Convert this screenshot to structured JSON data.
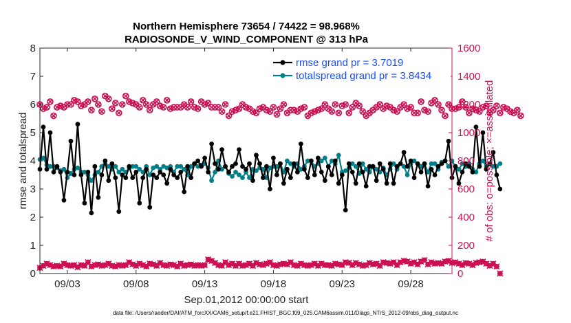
{
  "colors": {
    "rmse": "#000000",
    "spread": "#00808a",
    "obs": "#cc1054",
    "legend_text": "#1a4dff",
    "axis": "#262626"
  },
  "chart_data": {
    "type": "line",
    "title": "Northern Hemisphere 73654 / 74422 = 98.968%",
    "subtitle": "RADIOSONDE_V_WIND_COMPONENT @ 313 hPa",
    "xlabel": "Sep.01,2012 00:00:00 start",
    "ylabel": "rmse and totalspread",
    "ylabel_right": "# of obs: o=possible; ×=assimilated",
    "xlim": [
      1.0,
      31.0
    ],
    "ylim": [
      0,
      8
    ],
    "ylim_right": [
      0,
      1600
    ],
    "xticks": [
      3,
      8,
      13,
      18,
      23,
      28
    ],
    "xticklabels": [
      "09/03",
      "09/08",
      "09/13",
      "09/18",
      "09/23",
      "09/28"
    ],
    "yticks": [
      0,
      1,
      2,
      3,
      4,
      5,
      6,
      7,
      8
    ],
    "yticklabels": [
      "0",
      "1",
      "2",
      "3",
      "4",
      "5",
      "6",
      "7",
      "8"
    ],
    "yticks_right": [
      0,
      200,
      400,
      600,
      800,
      1000,
      1200,
      1400,
      1600
    ],
    "yticklabels_right": [
      "0",
      "200",
      "400",
      "600",
      "800",
      "1000",
      "1200",
      "1400",
      "1600"
    ],
    "x_start": 1.0,
    "x_step": 0.25,
    "series": [
      {
        "name": "rmse grand pr = 3.7019",
        "axis": "left",
        "marker": "dot",
        "values": [
          3.7,
          5.2,
          3.7,
          5.0,
          3.6,
          3.8,
          3.6,
          2.6,
          3.6,
          4.7,
          3.5,
          5.3,
          3.5,
          2.5,
          3.6,
          2.15,
          3.8,
          2.7,
          3.5,
          4.0,
          3.3,
          3.9,
          3.4,
          2.2,
          3.5,
          3.4,
          3.8,
          3.4,
          3.6,
          2.5,
          3.4,
          3.7,
          2.35,
          3.5,
          3.4,
          3.6,
          3.5,
          3.2,
          3.7,
          3.5,
          3.4,
          3.6,
          2.9,
          3.8,
          3.4,
          3.9,
          4.0,
          3.8,
          4.1,
          3.6,
          4.6,
          3.9,
          3.7,
          4.4,
          3.8,
          3.6,
          3.8,
          3.9,
          4.4,
          3.8,
          3.7,
          3.9,
          3.3,
          4.2,
          3.9,
          3.4,
          3.8,
          3.0,
          4.1,
          3.5,
          3.9,
          3.2,
          3.7,
          3.4,
          3.9,
          3.6,
          4.6,
          3.7,
          3.4,
          4.0,
          3.5,
          4.1,
          3.6,
          3.3,
          3.8,
          3.5,
          4.0,
          3.2,
          3.5,
          2.25,
          3.9,
          3.6,
          3.2,
          3.9,
          3.6,
          3.1,
          3.8,
          3.8,
          3.3,
          3.9,
          3.7,
          3.2,
          3.9,
          3.2,
          3.8,
          3.9,
          4.3,
          3.8,
          4.0,
          3.4,
          3.9,
          3.6,
          3.9,
          3.1,
          3.7,
          3.5,
          3.8,
          3.9,
          4.0,
          4.7,
          3.4,
          3.8,
          3.2,
          3.6,
          3.9,
          3.8,
          3.6,
          5.2,
          3.8,
          5.0,
          3.7,
          3.9,
          4.3,
          3.5,
          3.0
        ]
      },
      {
        "name": "totalspread grand pr = 3.8434",
        "axis": "left",
        "marker": "dot",
        "values": [
          4.05,
          4.1,
          3.85,
          3.8,
          3.8,
          3.75,
          3.65,
          3.7,
          3.4,
          3.55,
          3.7,
          3.75,
          3.6,
          3.6,
          3.5,
          3.3,
          3.5,
          3.6,
          3.8,
          3.9,
          3.8,
          3.7,
          3.8,
          3.6,
          3.7,
          3.6,
          3.75,
          3.8,
          3.8,
          3.7,
          3.6,
          3.8,
          3.5,
          3.75,
          3.8,
          3.7,
          3.8,
          3.75,
          3.8,
          3.6,
          3.8,
          3.8,
          3.7,
          3.5,
          3.8,
          3.9,
          3.8,
          3.85,
          3.9,
          3.75,
          3.3,
          3.6,
          4.0,
          3.7,
          3.8,
          3.55,
          3.45,
          3.6,
          3.5,
          3.4,
          3.6,
          3.4,
          3.7,
          3.65,
          3.75,
          3.7,
          3.4,
          3.75,
          3.8,
          3.8,
          3.9,
          3.6,
          4.0,
          3.9,
          3.8,
          3.9,
          3.7,
          3.8,
          4.0,
          4.0,
          3.8,
          3.9,
          4.0,
          4.1,
          3.8,
          4.0,
          3.9,
          4.2,
          3.6,
          3.65,
          3.75,
          3.9,
          3.8,
          3.55,
          3.9,
          3.7,
          3.6,
          3.8,
          3.7,
          3.6,
          3.75,
          3.5,
          3.7,
          3.9,
          3.7,
          3.9,
          3.8,
          3.5,
          3.9,
          4.0,
          3.9,
          3.8,
          3.9,
          3.6,
          3.9,
          3.9,
          3.7,
          3.95,
          4.0,
          3.8,
          4.0,
          3.8,
          3.7,
          3.9,
          3.8,
          3.9,
          3.7,
          3.6,
          3.9,
          4.0,
          3.8,
          3.9,
          3.8,
          3.8,
          3.9
        ]
      },
      {
        "name": "possible obs",
        "axis": "right",
        "marker": "circle",
        "values": [
          1200,
          1170,
          1180,
          1220,
          1120,
          1180,
          1190,
          1180,
          1200,
          1200,
          1230,
          1220,
          1190,
          1200,
          1220,
          1160,
          1240,
          1200,
          1150,
          1260,
          1240,
          1170,
          1210,
          1140,
          1200,
          1260,
          1220,
          1210,
          1200,
          1180,
          1230,
          1200,
          1160,
          1200,
          1220,
          1190,
          1180,
          1230,
          1170,
          1180,
          1180,
          1180,
          1200,
          1180,
          1220,
          1180,
          1170,
          1220,
          1200,
          1210,
          1180,
          1180,
          1180,
          1150,
          1200,
          1120,
          1150,
          1160,
          1170,
          1200,
          1180,
          1170,
          1150,
          1140,
          1170,
          1180,
          1160,
          1150,
          1180,
          1130,
          1170,
          1200,
          1140,
          1160,
          1160,
          1150,
          1170,
          1180,
          1120,
          1140,
          1150,
          1160,
          1170,
          1200,
          1170,
          1150,
          1200,
          1140,
          1190,
          1200,
          1140,
          1180,
          1210,
          1190,
          1150,
          1120,
          1140,
          1160,
          1180,
          1200,
          1170,
          1190,
          1180,
          1160,
          1150,
          1180,
          1200,
          1170,
          1180,
          1140,
          1140,
          1220,
          1160,
          1150,
          1210,
          1230,
          1200,
          1160,
          1120,
          1200,
          1170,
          1170,
          1180,
          1220,
          1180,
          1140,
          1170,
          1160,
          1150,
          1180,
          1190,
          1140,
          1160,
          1190,
          1140,
          1180,
          1170,
          1150,
          1140,
          1160,
          1120
        ]
      },
      {
        "name": "assimilated obs",
        "axis": "right",
        "marker": "x",
        "values": [
          40,
          55,
          70,
          60,
          50,
          55,
          50,
          70,
          60,
          55,
          60,
          45,
          60,
          55,
          80,
          50,
          60,
          65,
          55,
          60,
          70,
          55,
          50,
          60,
          55,
          60,
          80,
          65,
          55,
          70,
          60,
          50,
          70,
          65,
          55,
          75,
          60,
          55,
          65,
          60,
          50,
          70,
          55,
          60,
          65,
          55,
          60,
          55,
          60,
          100,
          90,
          75,
          60,
          55,
          80,
          60,
          70,
          55,
          70,
          55,
          60,
          70,
          55,
          75,
          65,
          60,
          70,
          80,
          60,
          55,
          65,
          70,
          65,
          80,
          60,
          55,
          70,
          60,
          55,
          60,
          70,
          55,
          70,
          60,
          60,
          55,
          70,
          65,
          60,
          80,
          75,
          60,
          75,
          65,
          55,
          60,
          75,
          65,
          70,
          55,
          80,
          75,
          70,
          80,
          60,
          80,
          90,
          85,
          70,
          80,
          65,
          85,
          95,
          65,
          80,
          70,
          75,
          70,
          85,
          90,
          75,
          80,
          70,
          60,
          75,
          70,
          60,
          75,
          80,
          85,
          70,
          55,
          70,
          50,
          0
        ]
      }
    ]
  },
  "legend": {
    "rmse_label": "rmse grand pr = 3.7019",
    "spread_label": "totalspread grand pr = 3.8434",
    "placement": "top-right"
  },
  "footer": {
    "text": "data file: /Users/raeder/DAI/ATM_forcXX/CAM6_setup/f.e21.FHIST_BGC.f09_025.CAM6assim.011/Diags_NTrS_2012-09/obs_diag_output.nc"
  }
}
